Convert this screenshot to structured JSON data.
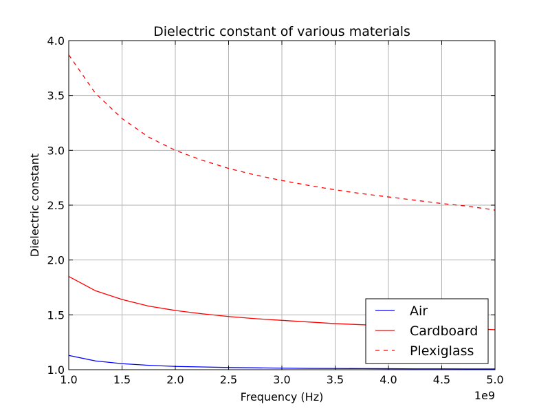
{
  "chart_data": {
    "type": "line",
    "title": "Dielectric constant of various materials",
    "xlabel": "Frequency (Hz)",
    "ylabel": "Dielectric constant",
    "x_offset_label": "1e9",
    "xlim": [
      1.0,
      5.0
    ],
    "ylim": [
      1.0,
      4.0
    ],
    "x_tick_values": [
      1.0,
      1.5,
      2.0,
      2.5,
      3.0,
      3.5,
      4.0,
      4.5,
      5.0
    ],
    "x_tick_labels": [
      "1.0",
      "1.5",
      "2.0",
      "2.5",
      "3.0",
      "3.5",
      "4.0",
      "4.5",
      "5.0"
    ],
    "y_tick_values": [
      1.0,
      1.5,
      2.0,
      2.5,
      3.0,
      3.5,
      4.0
    ],
    "y_tick_labels": [
      "1.0",
      "1.5",
      "2.0",
      "2.5",
      "3.0",
      "3.5",
      "4.0"
    ],
    "grid": true,
    "legend_position": "lower-right",
    "x": [
      1.0,
      1.25,
      1.5,
      1.75,
      2.0,
      2.25,
      2.5,
      2.75,
      3.0,
      3.25,
      3.5,
      3.75,
      4.0,
      4.25,
      4.5,
      4.75,
      5.0
    ],
    "series": [
      {
        "name": "Air",
        "color": "#0000ff",
        "style": "solid",
        "values": [
          1.13,
          1.08,
          1.055,
          1.04,
          1.03,
          1.025,
          1.02,
          1.017,
          1.014,
          1.012,
          1.011,
          1.01,
          1.009,
          1.008,
          1.008,
          1.007,
          1.007
        ]
      },
      {
        "name": "Cardboard",
        "color": "#ff0000",
        "style": "solid",
        "values": [
          1.85,
          1.72,
          1.64,
          1.58,
          1.54,
          1.51,
          1.485,
          1.465,
          1.45,
          1.435,
          1.42,
          1.41,
          1.4,
          1.39,
          1.38,
          1.375,
          1.365
        ]
      },
      {
        "name": "Plexiglass",
        "color": "#ff0000",
        "style": "dashed",
        "values": [
          3.87,
          3.52,
          3.29,
          3.12,
          3.0,
          2.91,
          2.835,
          2.775,
          2.725,
          2.68,
          2.64,
          2.605,
          2.575,
          2.545,
          2.515,
          2.49,
          2.455
        ]
      }
    ]
  }
}
